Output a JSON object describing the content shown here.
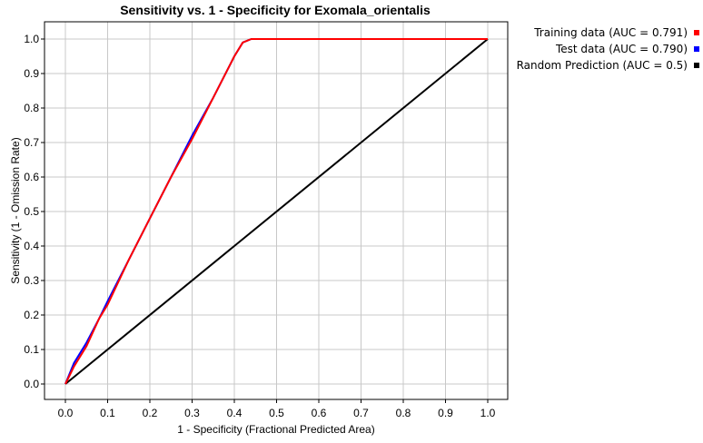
{
  "chart_data": {
    "type": "line",
    "title": "Sensitivity vs. 1 - Specificity for Exomala_orientalis",
    "xlabel": "1 - Specificity  (Fractional Predicted Area)",
    "ylabel": "Sensitivity  (1 - Omission Rate)",
    "xlim": [
      0,
      1
    ],
    "ylim": [
      0,
      1
    ],
    "xticks": [
      "0.0",
      "0.1",
      "0.2",
      "0.3",
      "0.4",
      "0.5",
      "0.6",
      "0.7",
      "0.8",
      "0.9",
      "1.0"
    ],
    "yticks": [
      "0.0",
      "0.1",
      "0.2",
      "0.3",
      "0.4",
      "0.5",
      "0.6",
      "0.7",
      "0.8",
      "0.9",
      "1.0"
    ],
    "grid": true,
    "legend_position": "top-right, outside plot",
    "series": [
      {
        "name": "Training data (AUC = 0.791)",
        "color": "#ff0000",
        "x": [
          0,
          0.02,
          0.05,
          0.08,
          0.1,
          0.15,
          0.2,
          0.25,
          0.3,
          0.35,
          0.4,
          0.42,
          0.44,
          0.5,
          0.6,
          0.7,
          0.8,
          0.9,
          1.0
        ],
        "y": [
          0,
          0.05,
          0.11,
          0.19,
          0.23,
          0.36,
          0.48,
          0.6,
          0.71,
          0.83,
          0.95,
          0.99,
          1.0,
          1.0,
          1.0,
          1.0,
          1.0,
          1.0,
          1.0
        ]
      },
      {
        "name": "Test data (AUC = 0.790)",
        "color": "#0000ff",
        "x": [
          0,
          0.02,
          0.05,
          0.08,
          0.1,
          0.15,
          0.2,
          0.25,
          0.3,
          0.35,
          0.4,
          0.42,
          0.44,
          0.5,
          0.6,
          0.7,
          0.8,
          0.9,
          1.0
        ],
        "y": [
          0,
          0.06,
          0.12,
          0.19,
          0.24,
          0.36,
          0.48,
          0.6,
          0.72,
          0.83,
          0.95,
          0.99,
          1.0,
          1.0,
          1.0,
          1.0,
          1.0,
          1.0,
          1.0
        ]
      },
      {
        "name": "Random Prediction (AUC = 0.5)",
        "color": "#000000",
        "x": [
          0,
          1
        ],
        "y": [
          0,
          1
        ]
      }
    ]
  },
  "legend": {
    "items": [
      {
        "label": "Training data (AUC = 0.791)",
        "color": "#ff0000"
      },
      {
        "label": "Test data (AUC = 0.790)",
        "color": "#0000ff"
      },
      {
        "label": "Random Prediction (AUC = 0.5)",
        "color": "#000000"
      }
    ]
  }
}
